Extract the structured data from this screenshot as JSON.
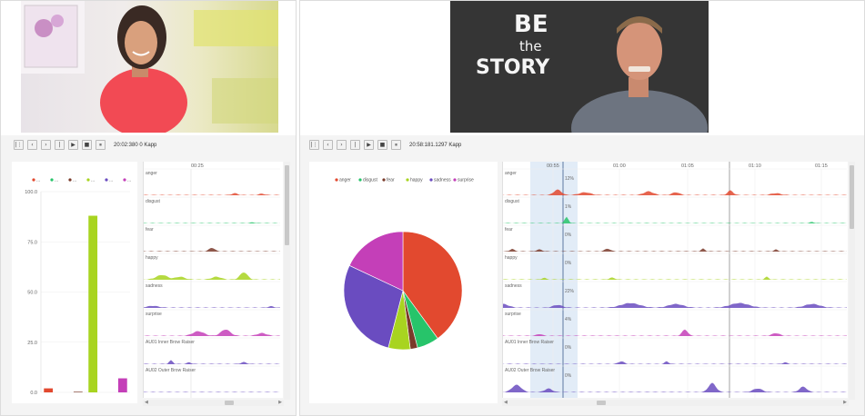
{
  "left_player": {
    "time": "20:02:380 0 Kapp",
    "buttons": [
      "|⋮",
      "‹",
      "›",
      "|",
      "▶",
      "■",
      "⏸"
    ]
  },
  "right_player": {
    "time": "20:58:181.1297 Kapp",
    "buttons": [
      "|⋮",
      "‹",
      "›",
      "|",
      "▶",
      "■",
      "⏸"
    ],
    "video_sign": [
      "BE",
      "the",
      "STORY"
    ]
  },
  "emotion_colors": {
    "anger": "#e2492f",
    "disgust": "#27c46a",
    "fear": "#7a3a2a",
    "happy": "#a8d420",
    "sadness": "#6a4cc0",
    "surprise": "#c43fb8"
  },
  "left_timeline": {
    "axis_label": "00:25",
    "tracks": [
      "anger",
      "disgust",
      "fear",
      "happy",
      "sadness",
      "surprise",
      "AU01 Inner Brow Raiser",
      "AU02 Outer Brow Raiser"
    ]
  },
  "right_timeline": {
    "axis_labels": [
      "00:55",
      "01:00",
      "01:05",
      "01:10",
      "01:15"
    ],
    "tracks": [
      "anger",
      "disgust",
      "fear",
      "happy",
      "sadness",
      "surprise",
      "AU01 Inner Brow Raiser",
      "AU02 Outer Brow Raiser"
    ],
    "percentages": [
      "12%",
      "1%",
      "0%",
      "0%",
      "22%",
      "4%",
      "0%",
      "0%"
    ]
  },
  "chart_data": [
    {
      "type": "bar",
      "categories": [
        "anger",
        "disgust",
        "fear",
        "happy",
        "sadness",
        "surprise"
      ],
      "values": [
        2,
        0,
        0.3,
        88,
        0,
        7
      ],
      "ylim": [
        0,
        100
      ],
      "yticks": [
        "0.0",
        "25.0",
        "50.0",
        "75.0",
        "100.0"
      ],
      "legend": [
        "...",
        "...",
        "...",
        "...",
        "...",
        "..."
      ],
      "legend_position": "top"
    },
    {
      "type": "pie",
      "legend": [
        "anger",
        "disgust",
        "fear",
        "happy",
        "sadness",
        "surprise"
      ],
      "legend_position": "top",
      "values": [
        40,
        6,
        2,
        6,
        28,
        18
      ]
    }
  ]
}
